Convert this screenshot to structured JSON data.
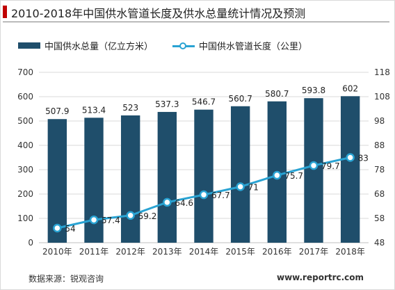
{
  "title": "2010-2018年中国供水管道长度及供水总量统计情况及预测",
  "legend": {
    "bar_label": "中国供水总量（亿立方米）",
    "line_label": "中国供水管道长度（公里）"
  },
  "source": "数据来源：锐观咨询",
  "website": "www.reportrc.com",
  "colors": {
    "bar": "#1f4e6b",
    "line": "#29a3d3",
    "title_accent": "#c00000"
  },
  "chart_data": {
    "type": "bar+line",
    "categories": [
      "2010年",
      "2011年",
      "2012年",
      "2013年",
      "2014年",
      "2015年",
      "2016年",
      "2017年",
      "2018年"
    ],
    "series": [
      {
        "name": "中国供水总量（亿立方米）",
        "type": "bar",
        "axis": "left",
        "values": [
          507.9,
          513.4,
          523,
          537.3,
          546.7,
          560.7,
          580.7,
          593.8,
          602
        ],
        "labels": [
          "507.9",
          "513.4",
          "523",
          "537.3",
          "546.7",
          "560.7",
          "580.7",
          "593.8",
          "602"
        ]
      },
      {
        "name": "中国供水管道长度（公里）",
        "type": "line",
        "axis": "right",
        "values": [
          54,
          57.4,
          59.2,
          64.6,
          67.7,
          71,
          75.7,
          79.7,
          83
        ],
        "labels": [
          "54",
          "57.4",
          "59.2",
          "64.6",
          "67.7",
          "71",
          "75.7",
          "79.7",
          "83"
        ]
      }
    ],
    "y_left": {
      "min": 0,
      "max": 700,
      "ticks": [
        "0",
        "100",
        "200",
        "300",
        "400",
        "500",
        "600",
        "700"
      ]
    },
    "y_right": {
      "min": 48,
      "max": 118,
      "ticks": [
        "48",
        "58",
        "68",
        "78",
        "88",
        "98",
        "108",
        "118"
      ]
    },
    "grid": true,
    "legend_position": "top-left"
  }
}
